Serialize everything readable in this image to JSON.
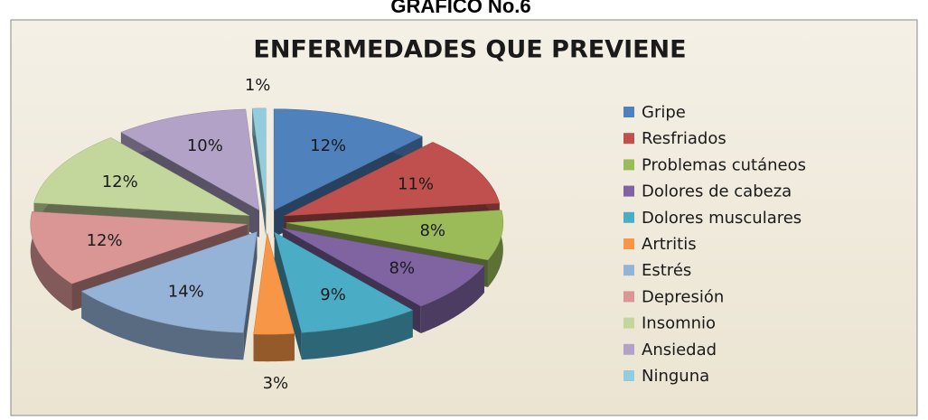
{
  "chart_data": {
    "type": "pie3d",
    "header": "GRAFICO No.6",
    "title": "ENFERMEDADES QUE PREVIENE",
    "categories": [
      "Gripe",
      "Resfriados",
      "Problemas cutáneos",
      "Dolores de cabeza",
      "Dolores musculares",
      "Artritis",
      "Estrés",
      "Depresión",
      "Insomnio",
      "Ansiedad",
      "Ninguna"
    ],
    "values": [
      12,
      11,
      8,
      8,
      9,
      3,
      14,
      12,
      12,
      10,
      1
    ],
    "value_labels": [
      "12%",
      "11%",
      "8%",
      "8%",
      "9%",
      "3%",
      "14%",
      "12%",
      "12%",
      "10%",
      "1%"
    ],
    "colors": [
      "#4f81bd",
      "#c0504d",
      "#9bbb59",
      "#8064a2",
      "#4bacc6",
      "#f79646",
      "#95b3d7",
      "#d99694",
      "#c3d69b",
      "#b2a2c7",
      "#93cddd"
    ],
    "legend": "right"
  }
}
